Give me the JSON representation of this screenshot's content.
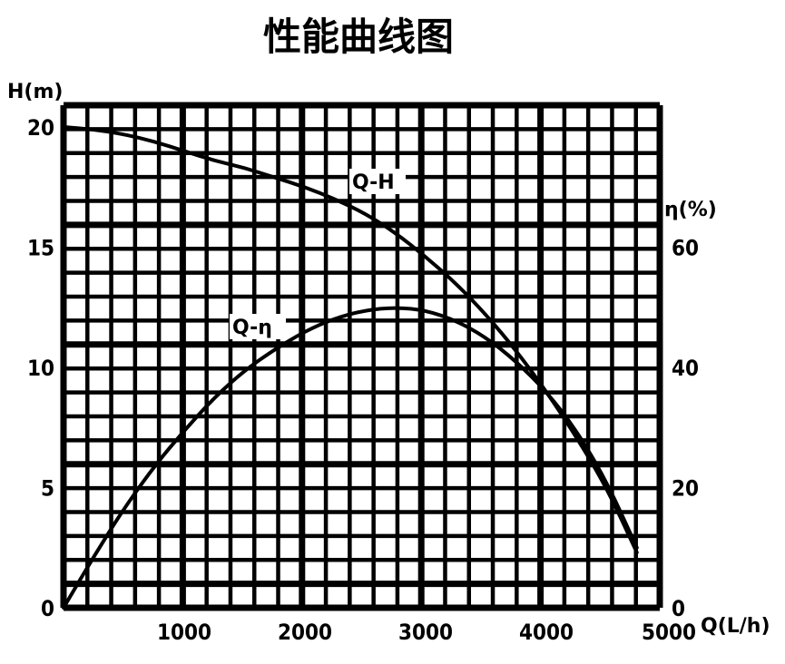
{
  "chart_data": {
    "type": "line",
    "title": "性能曲线图",
    "x_axis": {
      "label": "Q(L/h)",
      "range": [
        0,
        5000
      ],
      "ticks": [
        1000,
        2000,
        3000,
        4000,
        5000
      ]
    },
    "y_axis_left": {
      "label": "H(m)",
      "range": [
        0,
        20
      ],
      "ticks": [
        0,
        5,
        10,
        15,
        20
      ]
    },
    "y_axis_right": {
      "label": "η(%)",
      "range": [
        0,
        80
      ],
      "ticks": [
        0,
        20,
        40,
        60
      ]
    },
    "grid": true,
    "series": [
      {
        "name": "Q-H",
        "axis": "left",
        "points": [
          [
            0,
            20.0
          ],
          [
            250,
            19.9
          ],
          [
            500,
            19.7
          ],
          [
            750,
            19.4
          ],
          [
            1000,
            19.0
          ],
          [
            1250,
            18.6
          ],
          [
            1500,
            18.3
          ],
          [
            1750,
            17.9
          ],
          [
            2000,
            17.5
          ],
          [
            2250,
            17.0
          ],
          [
            2500,
            16.4
          ],
          [
            2750,
            15.6
          ],
          [
            3000,
            14.6
          ],
          [
            3250,
            13.5
          ],
          [
            3500,
            12.2
          ],
          [
            3750,
            10.7
          ],
          [
            4000,
            9.0
          ],
          [
            4250,
            7.1
          ],
          [
            4500,
            5.0
          ],
          [
            4750,
            2.3
          ]
        ]
      },
      {
        "name": "Q-η",
        "axis": "right",
        "points": [
          [
            0,
            0
          ],
          [
            250,
            8.5
          ],
          [
            500,
            16.5
          ],
          [
            750,
            23.5
          ],
          [
            1000,
            29.5
          ],
          [
            1250,
            35
          ],
          [
            1500,
            39.5
          ],
          [
            1750,
            43
          ],
          [
            2000,
            46
          ],
          [
            2250,
            48.2
          ],
          [
            2500,
            49.5
          ],
          [
            2750,
            50
          ],
          [
            3000,
            49.5
          ],
          [
            3250,
            47.8
          ],
          [
            3500,
            45
          ],
          [
            3750,
            41
          ],
          [
            4000,
            36
          ],
          [
            4250,
            29.5
          ],
          [
            4500,
            21
          ],
          [
            4750,
            10
          ]
        ]
      }
    ]
  }
}
